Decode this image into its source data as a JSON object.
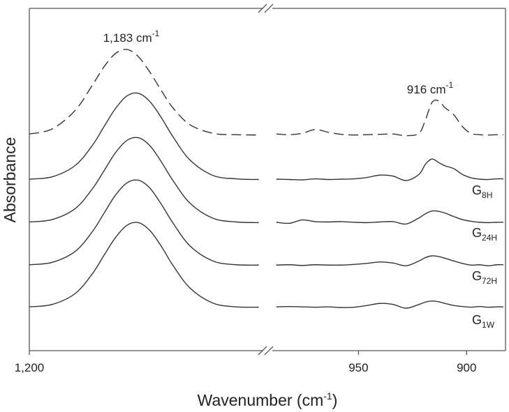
{
  "chart_data": {
    "type": "line",
    "ylabel": "Absorbance",
    "xlabel": {
      "text": "Wavenumber (cm",
      "sup": "-1",
      "tail": ")"
    },
    "panels": [
      {
        "xlim": [
          1200,
          1158.5
        ]
      },
      {
        "xlim": [
          990.5,
          882
        ]
      }
    ],
    "ylim": [
      0,
      100
    ],
    "xticks": [
      {
        "value": 1200,
        "label": "1,200"
      },
      950,
      900
    ],
    "x": [
      1200,
      1196,
      1192,
      1189,
      1187,
      1185,
      1183,
      1181,
      1179,
      1177,
      1175,
      1172,
      1168,
      1164,
      1160,
      988,
      982,
      976,
      970,
      964,
      958,
      952,
      946,
      940,
      934,
      928,
      922,
      919,
      916,
      913,
      910,
      906,
      902,
      898,
      894,
      890,
      886,
      883
    ],
    "series": [
      {
        "color": "#333333",
        "dash": true,
        "values": [
          63.3,
          64.8,
          70.2,
          77.6,
          82.9,
          86.8,
          88,
          85.9,
          81.4,
          76,
          71,
          66,
          63.5,
          63.1,
          63.0,
          63.3,
          63.1,
          63.5,
          64.6,
          63.8,
          63.2,
          63.0,
          63.1,
          63.2,
          63.3,
          62.8,
          63.5,
          67.5,
          72.5,
          73,
          71,
          69,
          65.5,
          63.5,
          63.1,
          63.0,
          63.1,
          63.1
        ]
      },
      {
        "name": "G",
        "sub": "8H",
        "color": "#333333",
        "dash": false,
        "values": [
          50.1,
          50.8,
          54.1,
          60,
          65.4,
          70.7,
          74.4,
          75.2,
          72.8,
          68.1,
          62.6,
          55.7,
          51.2,
          50.2,
          50.0,
          50.1,
          50,
          49.9,
          50.2,
          50,
          50.1,
          50.2,
          50.6,
          51.3,
          51,
          49.7,
          51.5,
          54.5,
          56,
          55,
          54,
          53.2,
          51.5,
          50.5,
          50.1,
          50,
          50.2,
          50.2
        ]
      },
      {
        "name": "G",
        "sub": "24H",
        "color": "#333333",
        "dash": false,
        "values": [
          37.6,
          38.3,
          41.5,
          47.3,
          52.5,
          57.8,
          61.4,
          62.2,
          59.9,
          55.2,
          49.8,
          43.1,
          38.7,
          37.6,
          37.4,
          37.5,
          37.2,
          38.2,
          37.7,
          37.6,
          37.7,
          37.5,
          37.4,
          37.6,
          37.7,
          37,
          38.8,
          40,
          40.8,
          40.7,
          40.2,
          39.2,
          38.3,
          37.8,
          37.5,
          37.4,
          37.5,
          37.5
        ]
      },
      {
        "name": "G",
        "sub": "72H",
        "color": "#333333",
        "dash": false,
        "values": [
          25.1,
          25.8,
          29,
          34.8,
          40.1,
          45.4,
          49,
          49.8,
          47.5,
          42.8,
          37.4,
          30.6,
          26.2,
          25.1,
          25.0,
          25,
          25.1,
          24.9,
          25.1,
          25,
          25,
          25.2,
          25.5,
          25.9,
          25.6,
          24.8,
          26.2,
          27.2,
          27.7,
          27.5,
          27,
          26.2,
          25.5,
          25,
          25.1,
          24.8,
          25.1,
          25.1
        ]
      },
      {
        "name": "G",
        "sub": "1W",
        "color": "#333333",
        "dash": false,
        "values": [
          12.8,
          13.5,
          16.7,
          22.5,
          27.8,
          33,
          36.6,
          37.4,
          35.1,
          30.5,
          25,
          18.3,
          13.9,
          12.8,
          12.7,
          12.8,
          12.9,
          12.8,
          12.7,
          12.8,
          12.6,
          12.7,
          13.2,
          13.8,
          13.5,
          12.4,
          13.5,
          14.2,
          14.5,
          14.3,
          13.8,
          13.2,
          12.9,
          12.7,
          12.9,
          12.7,
          12.8,
          12.8
        ]
      }
    ],
    "annotations": [
      {
        "text": "1,183 cm",
        "sup": "-1"
      },
      {
        "text": "916 cm",
        "sup": "-1"
      }
    ]
  }
}
